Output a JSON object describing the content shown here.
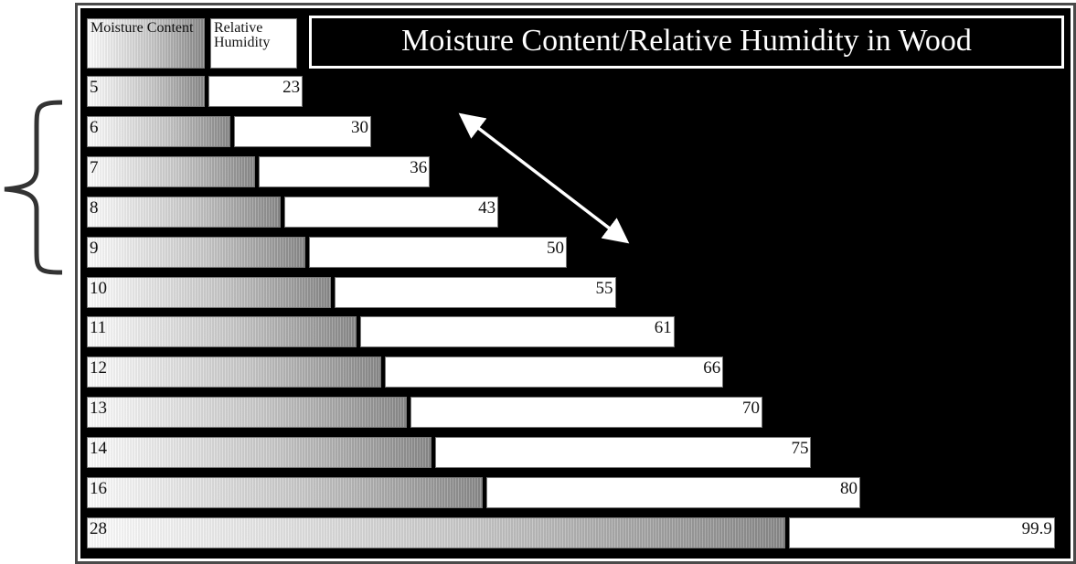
{
  "chart_data": {
    "type": "bar",
    "title": "Moisture Content/Relative Humidity in Wood",
    "series": [
      {
        "name": "Moisture Content",
        "color": "#9a9a9a",
        "values": [
          5,
          6,
          7,
          8,
          9,
          10,
          11,
          12,
          13,
          14,
          16,
          28
        ]
      },
      {
        "name": "Relative Humidity",
        "color": "#ffffff",
        "values": [
          23,
          30,
          36,
          43,
          50,
          55,
          61,
          66,
          70,
          75,
          80,
          99.9
        ]
      }
    ]
  }
}
